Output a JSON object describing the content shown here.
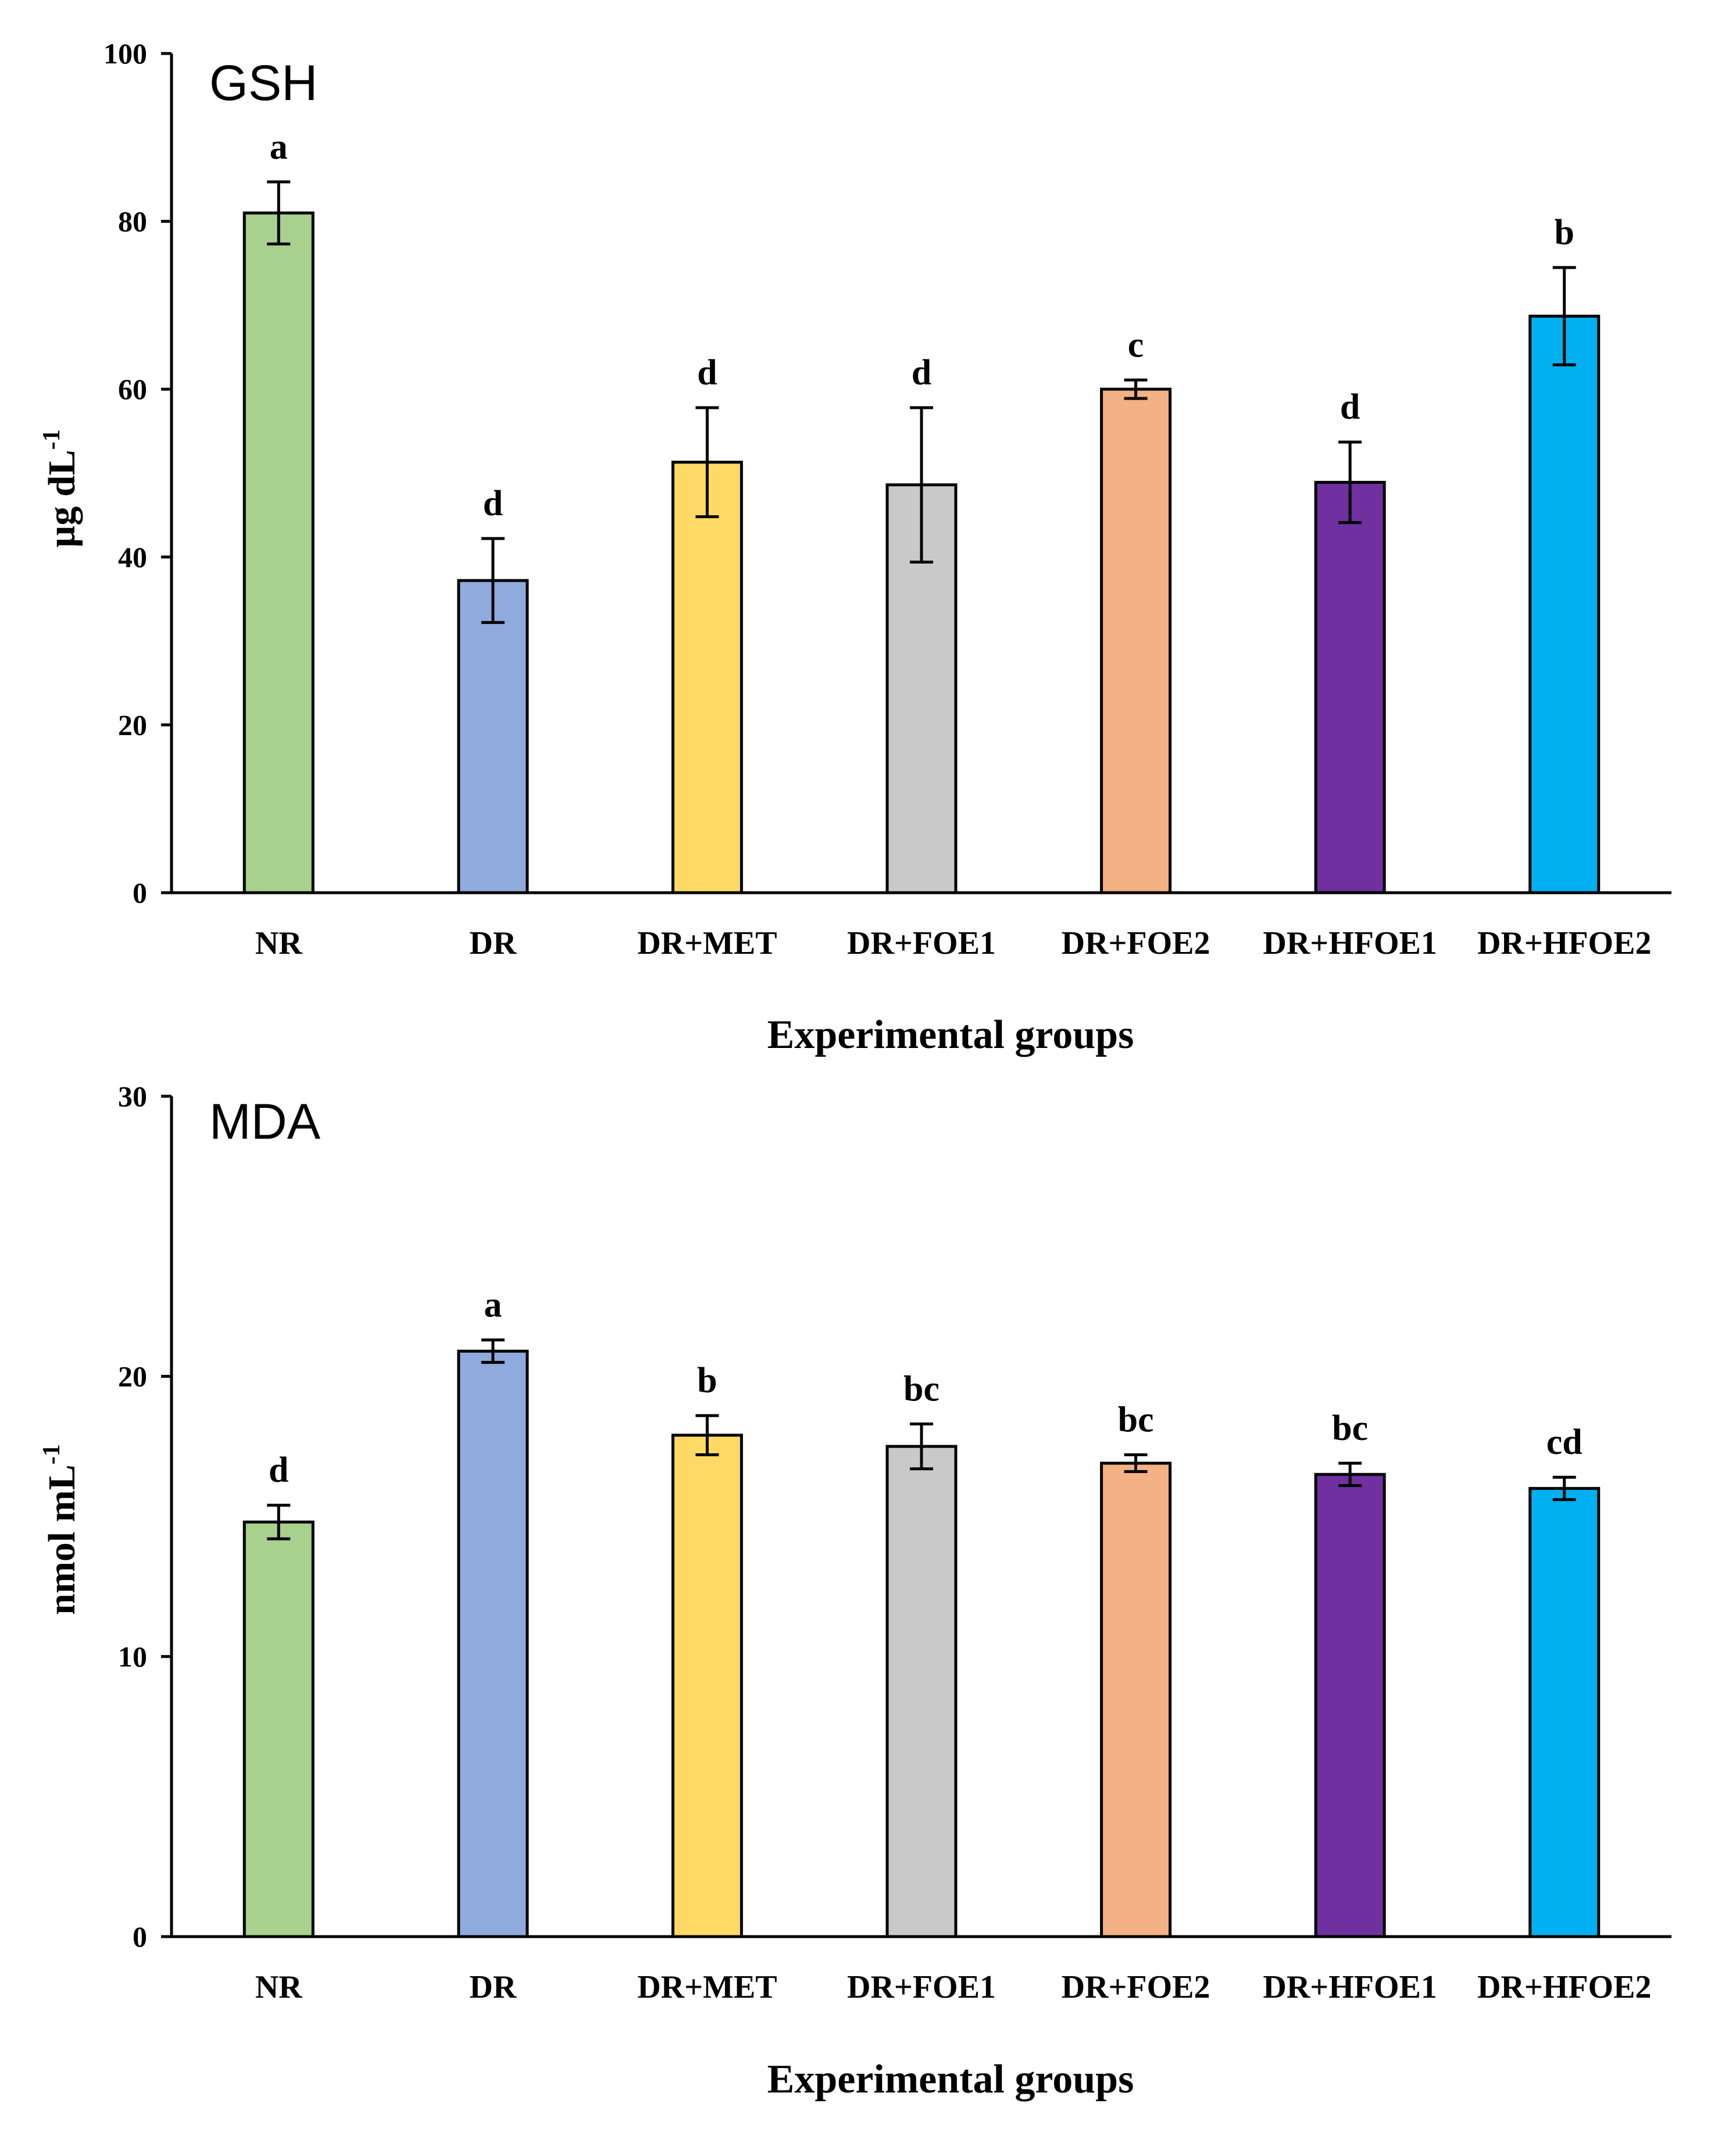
{
  "chart_data": [
    {
      "type": "bar",
      "title": "GSH",
      "xlabel": "Experimental groups",
      "ylabel": "µg dL",
      "ylabel_superscript": "-1",
      "ylim": [
        0,
        100
      ],
      "yticks": [
        0,
        20,
        40,
        60,
        80,
        100
      ],
      "categories": [
        "NR",
        "DR",
        "DR+MET",
        "DR+FOE1",
        "DR+FOE2",
        "DR+HFOE1",
        "DR+HFOE2"
      ],
      "values": [
        81,
        37.2,
        51.3,
        48.6,
        60,
        48.9,
        68.7
      ],
      "errors": [
        3.7,
        5,
        6.5,
        9.2,
        1.1,
        4.8,
        5.8
      ],
      "significance": [
        "a",
        "d",
        "d",
        "d",
        "c",
        "d",
        "b"
      ],
      "colors": [
        "#a9d18e",
        "#8faadc",
        "#ffd966",
        "#c9c9c9",
        "#f4b183",
        "#7030a0",
        "#00b0f0"
      ]
    },
    {
      "type": "bar",
      "title": "MDA",
      "xlabel": "Experimental groups",
      "ylabel": "nmol mL",
      "ylabel_superscript": "-1",
      "ylim": [
        0,
        30
      ],
      "yticks": [
        0,
        10,
        20,
        30
      ],
      "categories": [
        "NR",
        "DR",
        "DR+MET",
        "DR+FOE1",
        "DR+FOE2",
        "DR+HFOE1",
        "DR+HFOE2"
      ],
      "values": [
        14.8,
        20.9,
        17.9,
        17.5,
        16.9,
        16.5,
        16
      ],
      "errors": [
        0.6,
        0.4,
        0.7,
        0.8,
        0.3,
        0.4,
        0.4
      ],
      "significance": [
        "d",
        "a",
        "b",
        "bc",
        "bc",
        "bc",
        "cd"
      ],
      "colors": [
        "#a9d18e",
        "#8faadc",
        "#ffd966",
        "#c9c9c9",
        "#f4b183",
        "#7030a0",
        "#00b0f0"
      ]
    }
  ]
}
